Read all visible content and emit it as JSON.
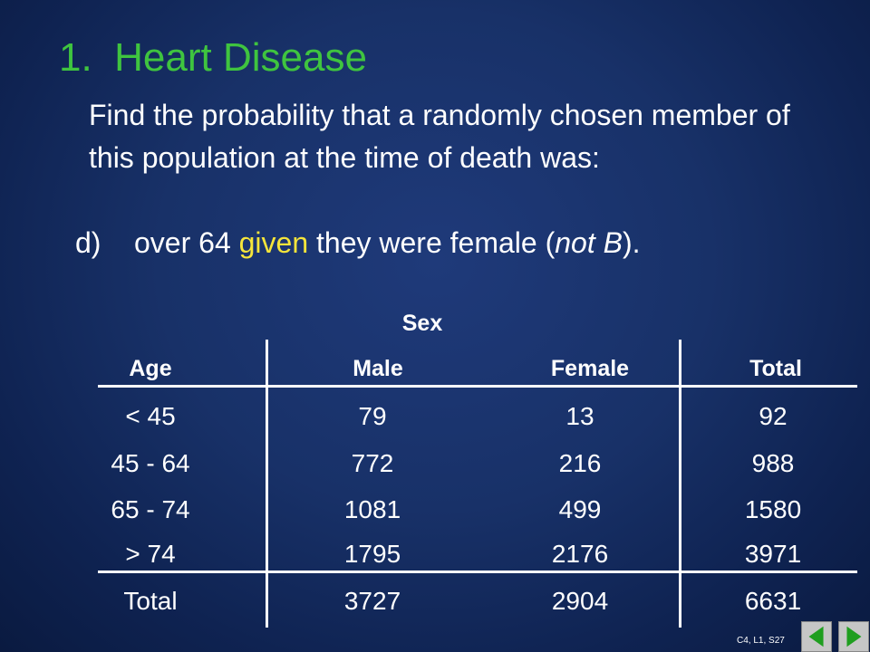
{
  "slide": {
    "title": "1.  Heart Disease",
    "body_text": "Find the probability that a randomly chosen member of this population at the time of death was:",
    "question": {
      "label": "d)",
      "before": "over 64 ",
      "highlight": "given",
      "after_1": " they were female (",
      "italic_1": "not B",
      "after_2": ")."
    }
  },
  "table": {
    "group_header": "Sex",
    "headers": [
      "Age",
      "Male",
      "Female",
      "Total"
    ],
    "rows": [
      [
        "< 45",
        "79",
        "13",
        "92"
      ],
      [
        "45 - 64",
        "772",
        "216",
        "988"
      ],
      [
        "65 - 74",
        "1081",
        "499",
        "1580"
      ],
      [
        "> 74",
        "1795",
        "2176",
        "3971"
      ]
    ],
    "total_row": [
      "Total",
      "3727",
      "2904",
      "6631"
    ]
  },
  "footer": {
    "slide_id": "C4, L1, S27",
    "prev_icon": "triangle-left-icon",
    "next_icon": "triangle-right-icon"
  },
  "colors": {
    "title": "#3fc43f",
    "highlight": "#f5e53b",
    "nav_arrow": "#1f9e1f"
  }
}
